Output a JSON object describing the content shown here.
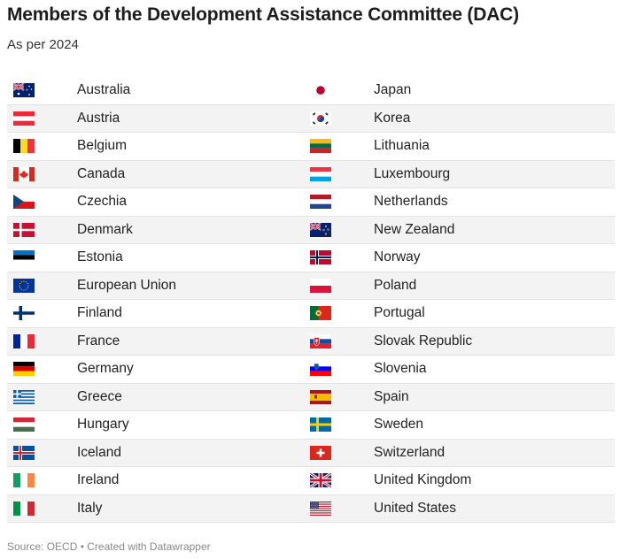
{
  "header": {
    "title": "Members of the Development Assistance Committee (DAC)",
    "subtitle": "As per 2024"
  },
  "rows": [
    {
      "left": {
        "name": "Australia",
        "flag": "flag-australia"
      },
      "right": {
        "name": "Japan",
        "flag": "flag-japan"
      }
    },
    {
      "left": {
        "name": "Austria",
        "flag": "flag-austria"
      },
      "right": {
        "name": "Korea",
        "flag": "flag-korea"
      }
    },
    {
      "left": {
        "name": "Belgium",
        "flag": "flag-belgium"
      },
      "right": {
        "name": "Lithuania",
        "flag": "flag-lithuania"
      }
    },
    {
      "left": {
        "name": "Canada",
        "flag": "flag-canada"
      },
      "right": {
        "name": "Luxembourg",
        "flag": "flag-luxembourg"
      }
    },
    {
      "left": {
        "name": "Czechia",
        "flag": "flag-czechia"
      },
      "right": {
        "name": "Netherlands",
        "flag": "flag-netherlands"
      }
    },
    {
      "left": {
        "name": "Denmark",
        "flag": "flag-denmark"
      },
      "right": {
        "name": "New Zealand",
        "flag": "flag-new-zealand"
      }
    },
    {
      "left": {
        "name": "Estonia",
        "flag": "flag-estonia"
      },
      "right": {
        "name": "Norway",
        "flag": "flag-norway"
      }
    },
    {
      "left": {
        "name": "European Union",
        "flag": "flag-european-union"
      },
      "right": {
        "name": "Poland",
        "flag": "flag-poland"
      }
    },
    {
      "left": {
        "name": "Finland",
        "flag": "flag-finland"
      },
      "right": {
        "name": "Portugal",
        "flag": "flag-portugal"
      }
    },
    {
      "left": {
        "name": "France",
        "flag": "flag-france"
      },
      "right": {
        "name": "Slovak Republic",
        "flag": "flag-slovakia"
      }
    },
    {
      "left": {
        "name": "Germany",
        "flag": "flag-germany"
      },
      "right": {
        "name": "Slovenia",
        "flag": "flag-slovenia"
      }
    },
    {
      "left": {
        "name": "Greece",
        "flag": "flag-greece"
      },
      "right": {
        "name": "Spain",
        "flag": "flag-spain"
      }
    },
    {
      "left": {
        "name": "Hungary",
        "flag": "flag-hungary"
      },
      "right": {
        "name": "Sweden",
        "flag": "flag-sweden"
      }
    },
    {
      "left": {
        "name": "Iceland",
        "flag": "flag-iceland"
      },
      "right": {
        "name": "Switzerland",
        "flag": "flag-switzerland"
      }
    },
    {
      "left": {
        "name": "Ireland",
        "flag": "flag-ireland"
      },
      "right": {
        "name": "United Kingdom",
        "flag": "flag-united-kingdom"
      }
    },
    {
      "left": {
        "name": "Italy",
        "flag": "flag-italy"
      },
      "right": {
        "name": "United States",
        "flag": "flag-united-states"
      }
    }
  ],
  "footer": {
    "source": "Source: OECD • Created with Datawrapper"
  }
}
